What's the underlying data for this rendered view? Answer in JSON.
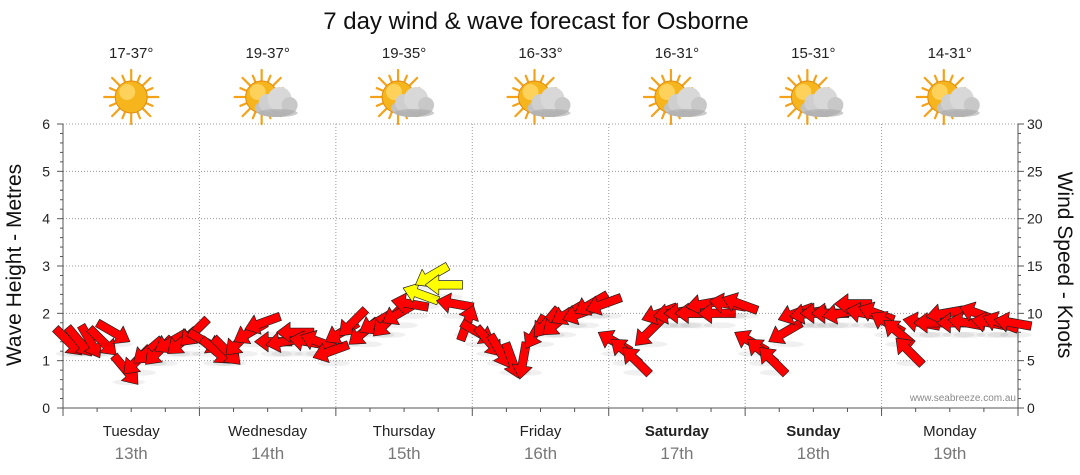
{
  "chart_data": {
    "type": "line",
    "title": "7 day wind & wave forecast for Osborne",
    "ylabel_left": "Wave Height - Metres",
    "ylabel_right": "Wind Speed - Knots",
    "ylim_left": [
      0,
      6
    ],
    "ylim_right": [
      0,
      30
    ],
    "yticks_left": [
      "0",
      "1",
      "2",
      "3",
      "4",
      "5",
      "6"
    ],
    "yticks_right": [
      "0",
      "5",
      "10",
      "15",
      "20",
      "25",
      "30"
    ],
    "grid": true,
    "watermark": "www.seabreeze.com.au",
    "days": [
      {
        "name": "Tuesday",
        "date": "13th",
        "bold": false,
        "temp": "17-37°",
        "icon": "sunny-icon"
      },
      {
        "name": "Wednesday",
        "date": "14th",
        "bold": false,
        "temp": "19-37°",
        "icon": "partly-cloudy-icon"
      },
      {
        "name": "Thursday",
        "date": "15th",
        "bold": false,
        "temp": "19-35°",
        "icon": "partly-cloudy-icon"
      },
      {
        "name": "Friday",
        "date": "16th",
        "bold": false,
        "temp": "16-33°",
        "icon": "partly-cloudy-icon"
      },
      {
        "name": "Saturday",
        "date": "17th",
        "bold": true,
        "temp": "16-31°",
        "icon": "partly-cloudy-icon"
      },
      {
        "name": "Sunday",
        "date": "18th",
        "bold": true,
        "temp": "15-31°",
        "icon": "partly-cloudy-icon"
      },
      {
        "name": "Monday",
        "date": "19th",
        "bold": false,
        "temp": "14-31°",
        "icon": "partly-cloudy-icon"
      }
    ],
    "wind_colors": {
      "low": "#ff0000",
      "high": "#ffff00"
    },
    "wind_series": {
      "name": "Wind Speed",
      "x_days": [
        0.0,
        0.08,
        0.16,
        0.25,
        0.33,
        0.42,
        0.5,
        0.58,
        0.66,
        0.75,
        0.83,
        0.92,
        1.0,
        1.08,
        1.16,
        1.25,
        1.33,
        1.42,
        1.5,
        1.58,
        1.66,
        1.75,
        1.83,
        1.92,
        2.0,
        2.08,
        2.16,
        2.25,
        2.33,
        2.42,
        2.5,
        2.58,
        2.66,
        2.75,
        2.83,
        2.92,
        3.0,
        3.08,
        3.16,
        3.25,
        3.33,
        3.42,
        3.5,
        3.58,
        3.66,
        3.75,
        3.83,
        3.92,
        4.0,
        4.08,
        4.16,
        4.25,
        4.33,
        4.42,
        4.5,
        4.58,
        4.66,
        4.75,
        4.83,
        4.92,
        5.0,
        5.08,
        5.16,
        5.25,
        5.33,
        5.42,
        5.5,
        5.58,
        5.66,
        5.75,
        5.83,
        5.92,
        6.0,
        6.08,
        6.16,
        6.25,
        6.33,
        6.42,
        6.5,
        6.58,
        6.66,
        6.75,
        6.83,
        6.92
      ],
      "knots": [
        7,
        7,
        7,
        7,
        8,
        4,
        5,
        6,
        6,
        7,
        7,
        8,
        7,
        6,
        6,
        7,
        8,
        9,
        7,
        7,
        8,
        7,
        7,
        6,
        8,
        9,
        8,
        9,
        9,
        10,
        11,
        12,
        14,
        13,
        11,
        9,
        8,
        7,
        6,
        5,
        5,
        8,
        9,
        9,
        10,
        10,
        11,
        11,
        7,
        6,
        5,
        8,
        10,
        10,
        10,
        10,
        11,
        10,
        11,
        11,
        7,
        6,
        5,
        8,
        10,
        10,
        10,
        10,
        10,
        11,
        10,
        10,
        9,
        8,
        6,
        9,
        9,
        10,
        9,
        9,
        10,
        9,
        9,
        9
      ],
      "direction_deg": [
        315,
        320,
        330,
        315,
        300,
        320,
        45,
        50,
        45,
        60,
        50,
        45,
        300,
        310,
        315,
        45,
        60,
        70,
        90,
        80,
        90,
        100,
        110,
        70,
        60,
        45,
        50,
        60,
        45,
        60,
        100,
        110,
        60,
        90,
        100,
        200,
        300,
        320,
        330,
        340,
        10,
        30,
        40,
        50,
        60,
        70,
        60,
        70,
        120,
        130,
        135,
        45,
        70,
        80,
        90,
        90,
        80,
        90,
        100,
        110,
        120,
        130,
        135,
        60,
        70,
        80,
        90,
        90,
        80,
        90,
        100,
        110,
        120,
        130,
        135,
        100,
        90,
        80,
        90,
        100,
        110,
        100,
        110,
        100
      ]
    },
    "wave_series": {
      "name": "Wave Height",
      "metres": []
    }
  }
}
